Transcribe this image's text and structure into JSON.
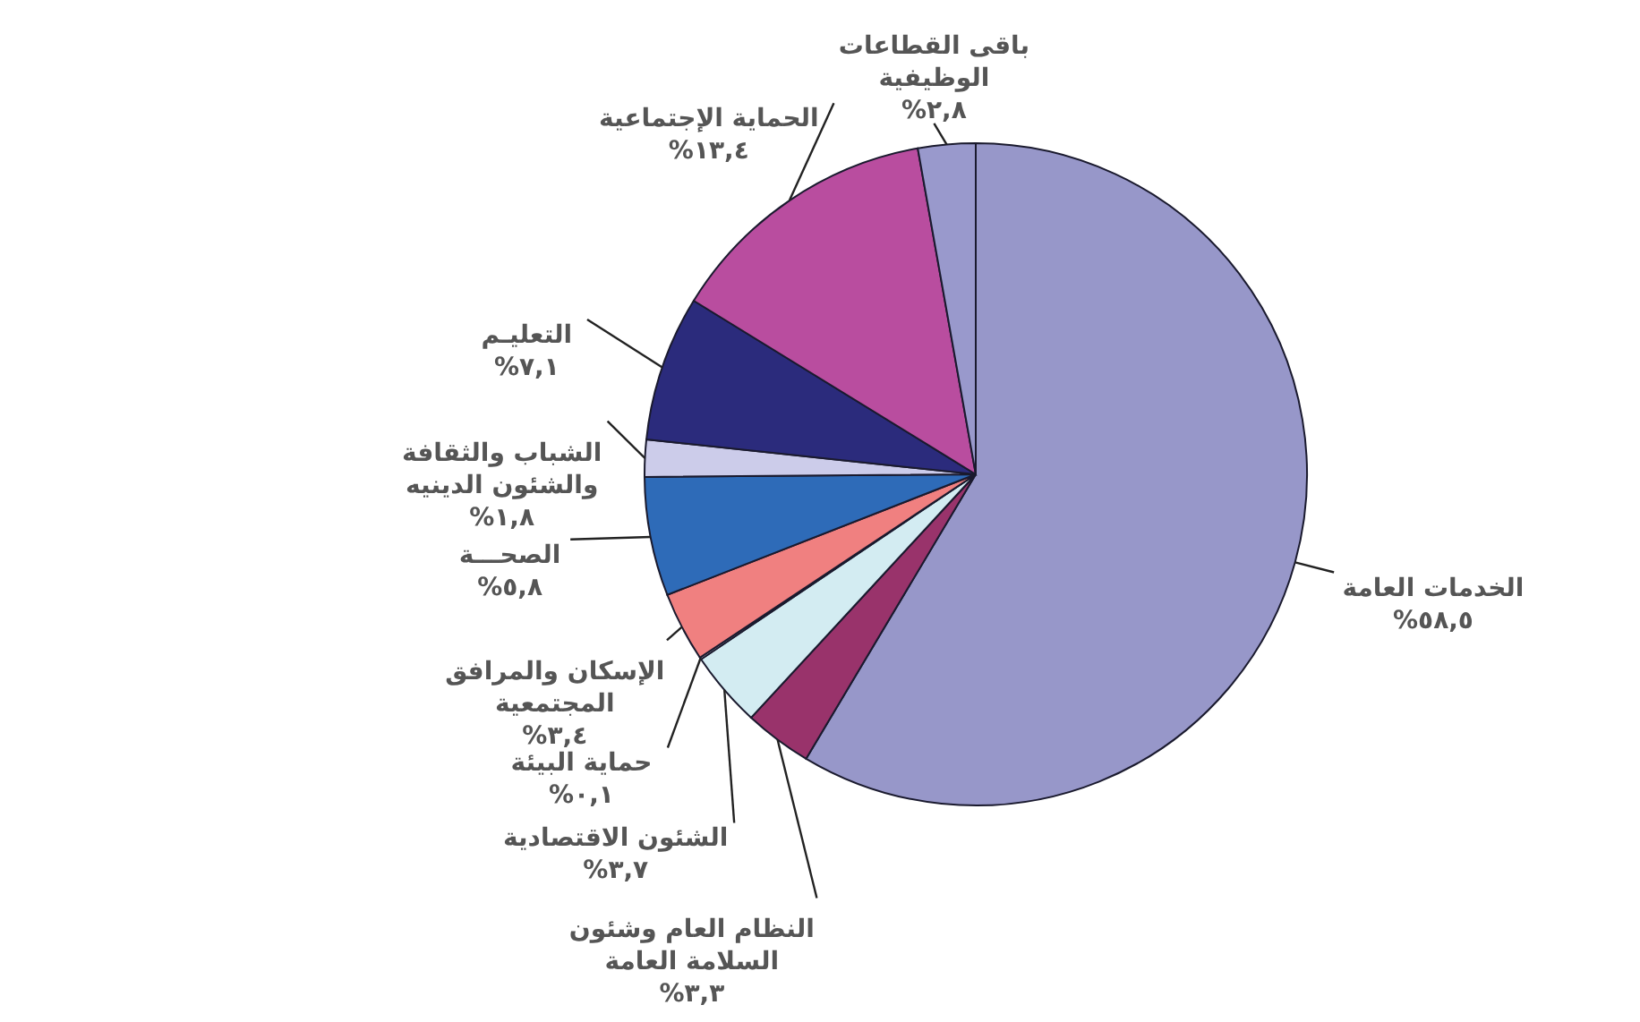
{
  "chart_data": {
    "type": "pie",
    "categories": [
      "الخدمات العامة",
      "النظام العام وشئون السلامة العامة",
      "الشئون الاقتصادية",
      "حماية البيئة",
      "الإسكان والمرافق المجتمعية",
      "الصحـــة",
      "الشباب والثقافة والشئون الدينيه",
      "التعليـم",
      "الحماية الإجتماعية",
      "باقى القطاعات الوظيفية"
    ],
    "values": [
      58.5,
      3.3,
      3.7,
      0.1,
      3.4,
      5.8,
      1.8,
      7.1,
      13.4,
      2.8
    ],
    "value_labels": [
      "%٥٨,٥",
      "%٣,٣",
      "%٣,٧",
      "%٠,١",
      "%٣,٤",
      "%٥,٨",
      "%١,٨",
      "%٧,١",
      "%١٣,٤",
      "%٢,٨"
    ],
    "colors": [
      "#9797c9",
      "#99336b",
      "#d3ecf2",
      "#e4e4ee",
      "#f08080",
      "#2e6bb8",
      "#ccccea",
      "#2b2b7c",
      "#b94d9f",
      "#9999cc"
    ]
  }
}
